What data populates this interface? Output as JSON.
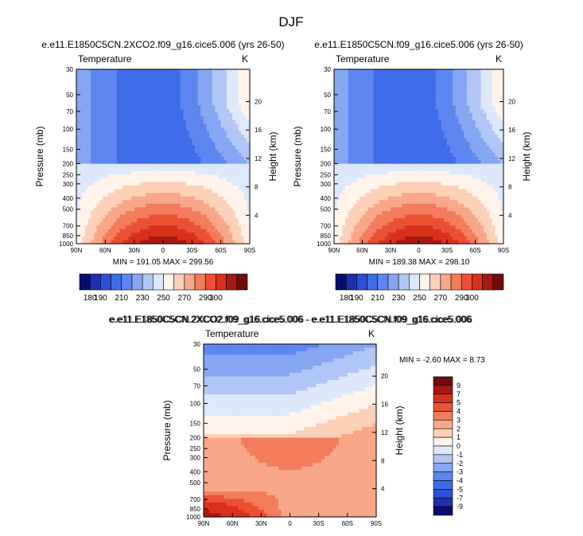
{
  "page": {
    "title": "DJF",
    "colors": {
      "palette": [
        "#0a0d6b",
        "#1d2fae",
        "#2d50d6",
        "#3e6ce8",
        "#5d86f0",
        "#86a6f3",
        "#b1c6f6",
        "#dde8fb",
        "#fff3ea",
        "#fcd1b8",
        "#f8a888",
        "#f37c5c",
        "#ec5034",
        "#d8311c",
        "#a81814",
        "#6f0c0c"
      ],
      "diff_palette": [
        "#0a0d6b",
        "#1d2fae",
        "#2d50d6",
        "#3e6ce8",
        "#5d86f0",
        "#86a6f3",
        "#b1c6f6",
        "#dde8fb",
        "#fff3ea",
        "#fcd1b8",
        "#f8a888",
        "#f37c5c",
        "#ec5034",
        "#d8311c",
        "#a81814",
        "#6f0c0c"
      ]
    }
  },
  "chart_data": [
    {
      "type": "heatmap",
      "subtitle": "e.e11.E1850C5CN.2XCO2.f09_g16.cice5.006 (yrs 26-50)",
      "var_label": "Temperature",
      "units": "K",
      "ylabel": "Pressure (mb)",
      "y2label": "Height (km)",
      "x_ticks": [
        "90N",
        "60N",
        "30N",
        "0",
        "30S",
        "60S",
        "90S"
      ],
      "x_tick_values": [
        90,
        60,
        30,
        0,
        -30,
        -60,
        -90
      ],
      "y_ticks": [
        "30",
        "50",
        "70",
        "100",
        "150",
        "200",
        "250",
        "300",
        "400",
        "500",
        "700",
        "850",
        "1000"
      ],
      "y_tick_values": [
        30,
        50,
        70,
        100,
        150,
        200,
        250,
        300,
        400,
        500,
        700,
        850,
        1000
      ],
      "y2_ticks": [
        "20",
        "16",
        "12",
        "8",
        "4"
      ],
      "y2_tick_values": [
        20,
        16,
        12,
        8,
        4
      ],
      "ylim": [
        1000,
        30
      ],
      "xlim": [
        90,
        -90
      ],
      "min_label": "MIN = 191.05",
      "max_label": "MAX = 299.56",
      "min": 191.05,
      "max": 299.56,
      "model": "base"
    },
    {
      "type": "heatmap",
      "subtitle": "e.e11.E1850C5CN.f09_g16.cice5.006 (yrs 26-50)",
      "var_label": "Temperature",
      "units": "K",
      "ylabel": "Pressure (mb)",
      "y2label": "Height (km)",
      "x_ticks": [
        "90N",
        "60N",
        "30N",
        "0",
        "30S",
        "60S",
        "90S"
      ],
      "x_tick_values": [
        90,
        60,
        30,
        0,
        -30,
        -60,
        -90
      ],
      "y_ticks": [
        "30",
        "50",
        "70",
        "100",
        "150",
        "200",
        "250",
        "300",
        "400",
        "500",
        "700",
        "850",
        "1000"
      ],
      "y_tick_values": [
        30,
        50,
        70,
        100,
        150,
        200,
        250,
        300,
        400,
        500,
        700,
        850,
        1000
      ],
      "y2_ticks": [
        "20",
        "16",
        "12",
        "8",
        "4"
      ],
      "y2_tick_values": [
        20,
        16,
        12,
        8,
        4
      ],
      "ylim": [
        1000,
        30
      ],
      "xlim": [
        90,
        -90
      ],
      "min_label": "MIN = 189.38",
      "max_label": "MAX = 298.10",
      "min": 189.38,
      "max": 298.1,
      "model": "base"
    },
    {
      "type": "heatmap",
      "subtitle": "e.e11.E1850C5CN.2XCO2.f09_g16.cice5.006 - e.e11.E1850C5CN.f09_g16.cice5.006",
      "var_label": "Temperature",
      "units": "K",
      "ylabel": "Pressure (mb)",
      "y2label": "Height (km)",
      "x_ticks": [
        "90N",
        "60N",
        "30N",
        "0",
        "30S",
        "60S",
        "90S"
      ],
      "x_tick_values": [
        90,
        60,
        30,
        0,
        -30,
        -60,
        -90
      ],
      "y_ticks": [
        "30",
        "50",
        "70",
        "100",
        "150",
        "200",
        "250",
        "300",
        "400",
        "500",
        "700",
        "850",
        "1000"
      ],
      "y_tick_values": [
        30,
        50,
        70,
        100,
        150,
        200,
        250,
        300,
        400,
        500,
        700,
        850,
        1000
      ],
      "y2_ticks": [
        "20",
        "16",
        "12",
        "8",
        "4"
      ],
      "y2_tick_values": [
        20,
        16,
        12,
        8,
        4
      ],
      "ylim": [
        1000,
        30
      ],
      "xlim": [
        90,
        -90
      ],
      "min_label": "MIN =  -2.60",
      "max_label": "MAX =   8.73",
      "min": -2.6,
      "max": 8.73,
      "model": "diff"
    }
  ],
  "colorbar_main": {
    "levels": [
      180,
      190,
      200,
      210,
      220,
      230,
      240,
      250,
      260,
      270,
      280,
      290,
      300
    ],
    "labels": [
      "180",
      "190",
      "210",
      "230",
      "250",
      "270",
      "290",
      "300"
    ],
    "label_values": [
      180,
      190,
      210,
      230,
      250,
      270,
      290,
      300
    ]
  },
  "colorbar_diff": {
    "levels": [
      -9,
      -7,
      -5,
      -4,
      -3,
      -2,
      -1,
      0,
      1,
      2,
      3,
      4,
      5,
      7,
      9
    ],
    "labels": [
      "9",
      "7",
      "5",
      "4",
      "3",
      "2",
      "1",
      "0",
      "-1",
      "-2",
      "-3",
      "-4",
      "-5",
      "-7",
      "-9"
    ]
  },
  "diff_title": "e.e11.E1850C5CN.2XCO2.f09_g16.cice5.006 - e.e11.E1850C5CN.f09_g16.cice5.006"
}
